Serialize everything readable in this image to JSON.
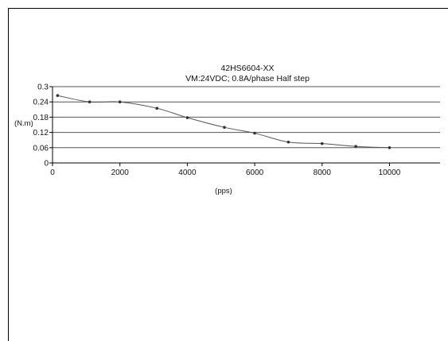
{
  "chart_data": {
    "type": "line",
    "title": "42HS6604-XX",
    "subtitle": "VM:24VDC; 0.8A/phase Half step",
    "xlabel": "(pps)",
    "ylabel": "(N.m)",
    "xlim": [
      0,
      11500
    ],
    "ylim": [
      0,
      0.3
    ],
    "x_ticks": [
      0,
      2000,
      4000,
      6000,
      8000,
      10000
    ],
    "y_ticks": [
      0,
      0.06,
      0.12,
      0.18,
      0.24,
      0.3
    ],
    "x_tick_labels": [
      "0",
      "2000",
      "4000",
      "6000",
      "8000",
      "10000"
    ],
    "y_tick_labels": [
      "0",
      "0.06",
      "0.12",
      "0.18",
      "0.24",
      "0.3"
    ],
    "grid": "horizontal",
    "series": [
      {
        "x": [
          150,
          1100,
          2000,
          3100,
          4000,
          5100,
          6000,
          7000,
          8000,
          9000,
          10000
        ],
        "y": [
          0.265,
          0.24,
          0.24,
          0.215,
          0.178,
          0.14,
          0.117,
          0.082,
          0.076,
          0.065,
          0.06
        ]
      }
    ],
    "colors": {
      "line": "#555555",
      "marker": "#333333",
      "grid": "#555555"
    }
  }
}
